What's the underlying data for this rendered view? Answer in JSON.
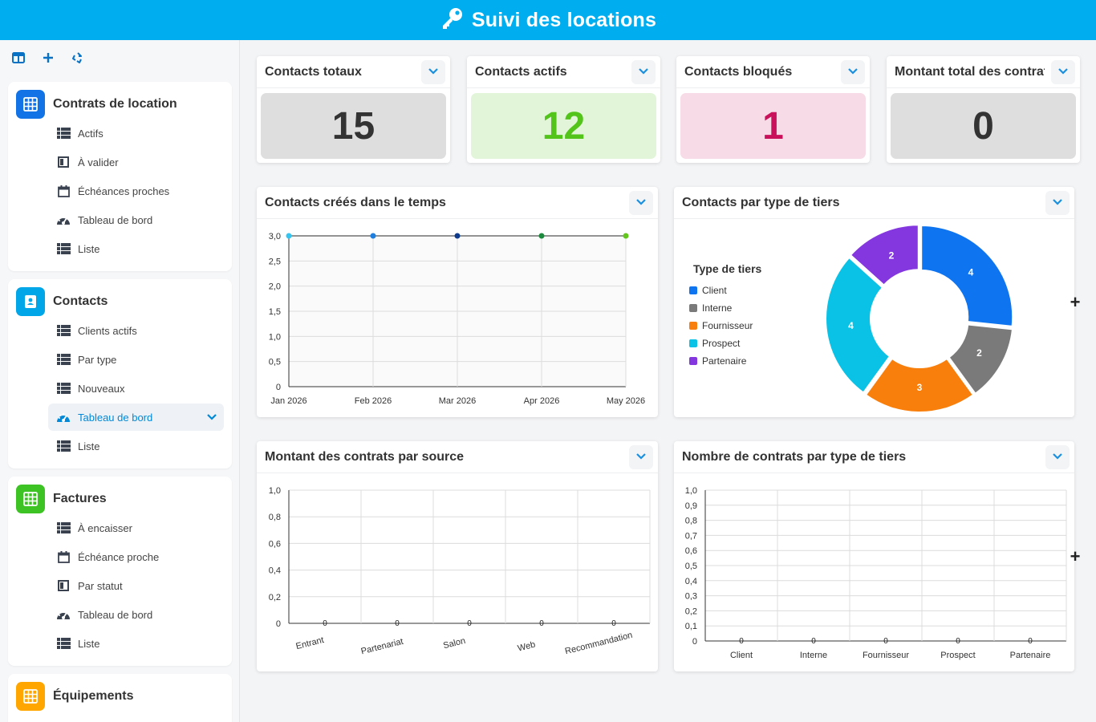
{
  "header": {
    "title": "Suivi des locations",
    "icon": "key-icon"
  },
  "toolbar": {
    "icons": [
      "panel-toggle-icon",
      "add-icon",
      "refresh-icon"
    ]
  },
  "sidebar": {
    "groups": [
      {
        "label": "Contrats de location",
        "color": "#1273e6",
        "icon": "grid-icon",
        "items": [
          {
            "label": "Actifs",
            "icon": "table-icon"
          },
          {
            "label": "À valider",
            "icon": "board-icon"
          },
          {
            "label": "Échéances proches",
            "icon": "calendar-icon"
          },
          {
            "label": "Tableau de bord",
            "icon": "dashboard-icon"
          },
          {
            "label": "Liste",
            "icon": "table-icon"
          }
        ]
      },
      {
        "label": "Contacts",
        "color": "#00a6e8",
        "icon": "contact-book-icon",
        "items": [
          {
            "label": "Clients actifs",
            "icon": "table-icon"
          },
          {
            "label": "Par type",
            "icon": "table-icon"
          },
          {
            "label": "Nouveaux",
            "icon": "table-icon"
          },
          {
            "label": "Tableau de bord",
            "icon": "dashboard-icon",
            "active": true
          },
          {
            "label": "Liste",
            "icon": "table-icon"
          }
        ]
      },
      {
        "label": "Factures",
        "color": "#3ec324",
        "icon": "grid-icon",
        "items": [
          {
            "label": "À encaisser",
            "icon": "table-icon"
          },
          {
            "label": "Échéance proche",
            "icon": "calendar-icon"
          },
          {
            "label": "Par statut",
            "icon": "board-icon"
          },
          {
            "label": "Tableau de bord",
            "icon": "dashboard-icon"
          },
          {
            "label": "Liste",
            "icon": "table-icon"
          }
        ]
      },
      {
        "label": "Équipements",
        "color": "#ffa600",
        "icon": "grid-icon",
        "items": []
      }
    ]
  },
  "kpis": [
    {
      "title": "Contacts totaux",
      "value": "15",
      "bg": "#dedede",
      "fg": "#333333"
    },
    {
      "title": "Contacts actifs",
      "value": "12",
      "bg": "#e2f5d9",
      "fg": "#52c41a"
    },
    {
      "title": "Contacts bloqués",
      "value": "1",
      "bg": "#f7dbe6",
      "fg": "#c8115a"
    },
    {
      "title": "Montant total des contrats",
      "value": "0",
      "bg": "#dedede",
      "fg": "#333333"
    }
  ],
  "chart_data": [
    {
      "title": "Contacts créés dans le temps",
      "type": "line",
      "categories": [
        "Jan 2026",
        "Feb 2026",
        "Mar 2026",
        "Apr 2026",
        "May 2026"
      ],
      "values": [
        3,
        3,
        3,
        3,
        3
      ],
      "point_colors": [
        "#36c5f0",
        "#1f7fe0",
        "#103a8c",
        "#1c8a3c",
        "#63c61c"
      ],
      "yticks": [
        "0",
        "0,5",
        "1,0",
        "1,5",
        "2,0",
        "2,5",
        "3,0"
      ],
      "ylim": [
        0,
        3
      ],
      "grid": true
    },
    {
      "title": "Contacts par type de tiers",
      "type": "pie",
      "legend_title": "Type de tiers",
      "legend_position": "left",
      "slices": [
        {
          "name": "Client",
          "value": 4,
          "color": "#0e74f0"
        },
        {
          "name": "Interne",
          "value": 2,
          "color": "#7a7a7a"
        },
        {
          "name": "Fournisseur",
          "value": 3,
          "color": "#f97f0c"
        },
        {
          "name": "Prospect",
          "value": 4,
          "color": "#0ac1e6"
        },
        {
          "name": "Partenaire",
          "value": 2,
          "color": "#8436df"
        }
      ]
    },
    {
      "title": "Montant des contrats par source",
      "type": "bar",
      "categories": [
        "Entrant",
        "Partenariat",
        "Salon",
        "Web",
        "Recommandation"
      ],
      "values": [
        0,
        0,
        0,
        0,
        0
      ],
      "yticks": [
        "0",
        "0,2",
        "0,4",
        "0,6",
        "0,8",
        "1,0"
      ],
      "ylim": [
        0,
        1
      ],
      "grid": true
    },
    {
      "title": "Nombre de contrats par type de tiers",
      "type": "bar",
      "categories": [
        "Client",
        "Interne",
        "Fournisseur",
        "Prospect",
        "Partenaire"
      ],
      "values": [
        0,
        0,
        0,
        0,
        0
      ],
      "yticks": [
        "0",
        "0,1",
        "0,2",
        "0,3",
        "0,4",
        "0,5",
        "0,6",
        "0,7",
        "0,8",
        "0,9",
        "1,0"
      ],
      "ylim": [
        0,
        1
      ],
      "grid": true
    }
  ],
  "actions": {
    "add_symbol": "+"
  }
}
